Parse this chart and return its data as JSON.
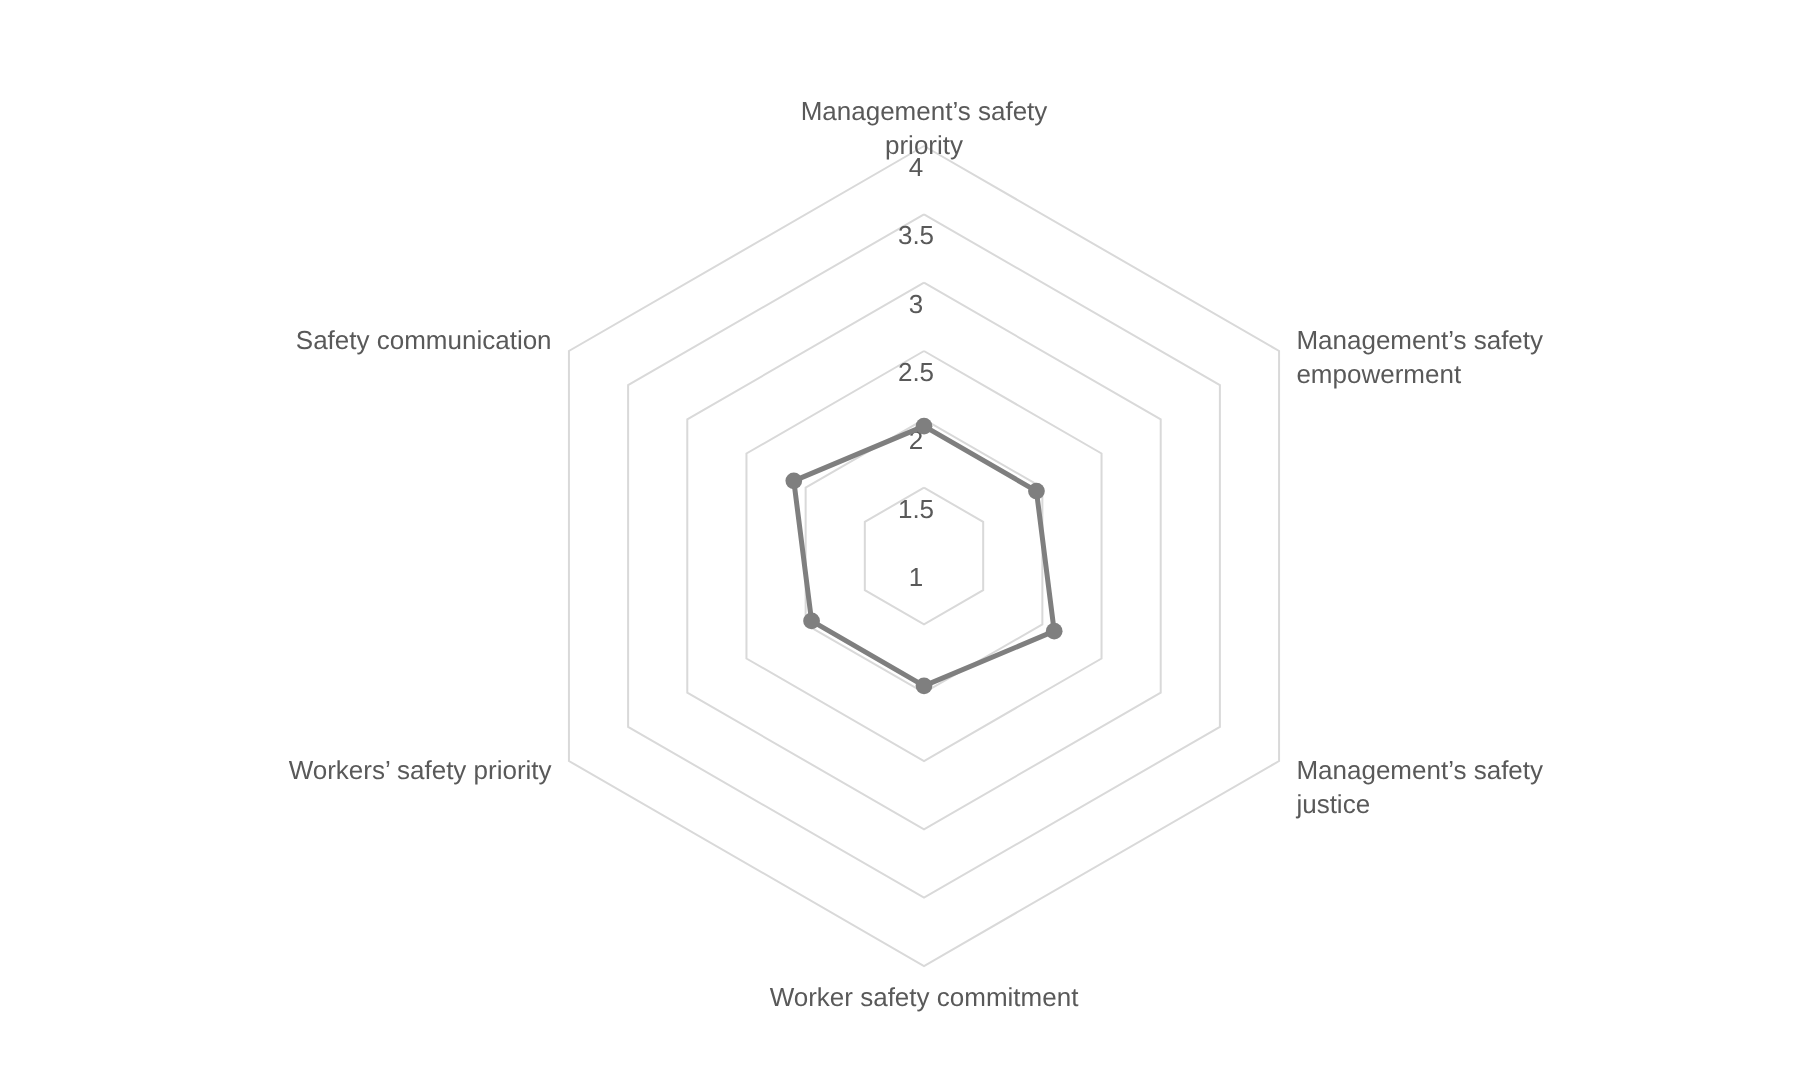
{
  "chart_data": {
    "type": "radar",
    "categories": [
      "Management’s safety priority",
      "Management’s safety empowerment",
      "Management’s safety justice",
      "Worker safety commitment",
      "Workers’ safety priority",
      "Safety communication"
    ],
    "series": [
      {
        "color": "#7f7f7f",
        "values": [
          1.95,
          1.95,
          2.1,
          1.95,
          1.95,
          2.1
        ]
      }
    ],
    "ylim": [
      1,
      4
    ],
    "yticks": [
      1,
      1.5,
      2,
      2.5,
      3,
      3.5,
      4
    ],
    "grid": true,
    "marker": "circle",
    "line_style": "solid"
  }
}
